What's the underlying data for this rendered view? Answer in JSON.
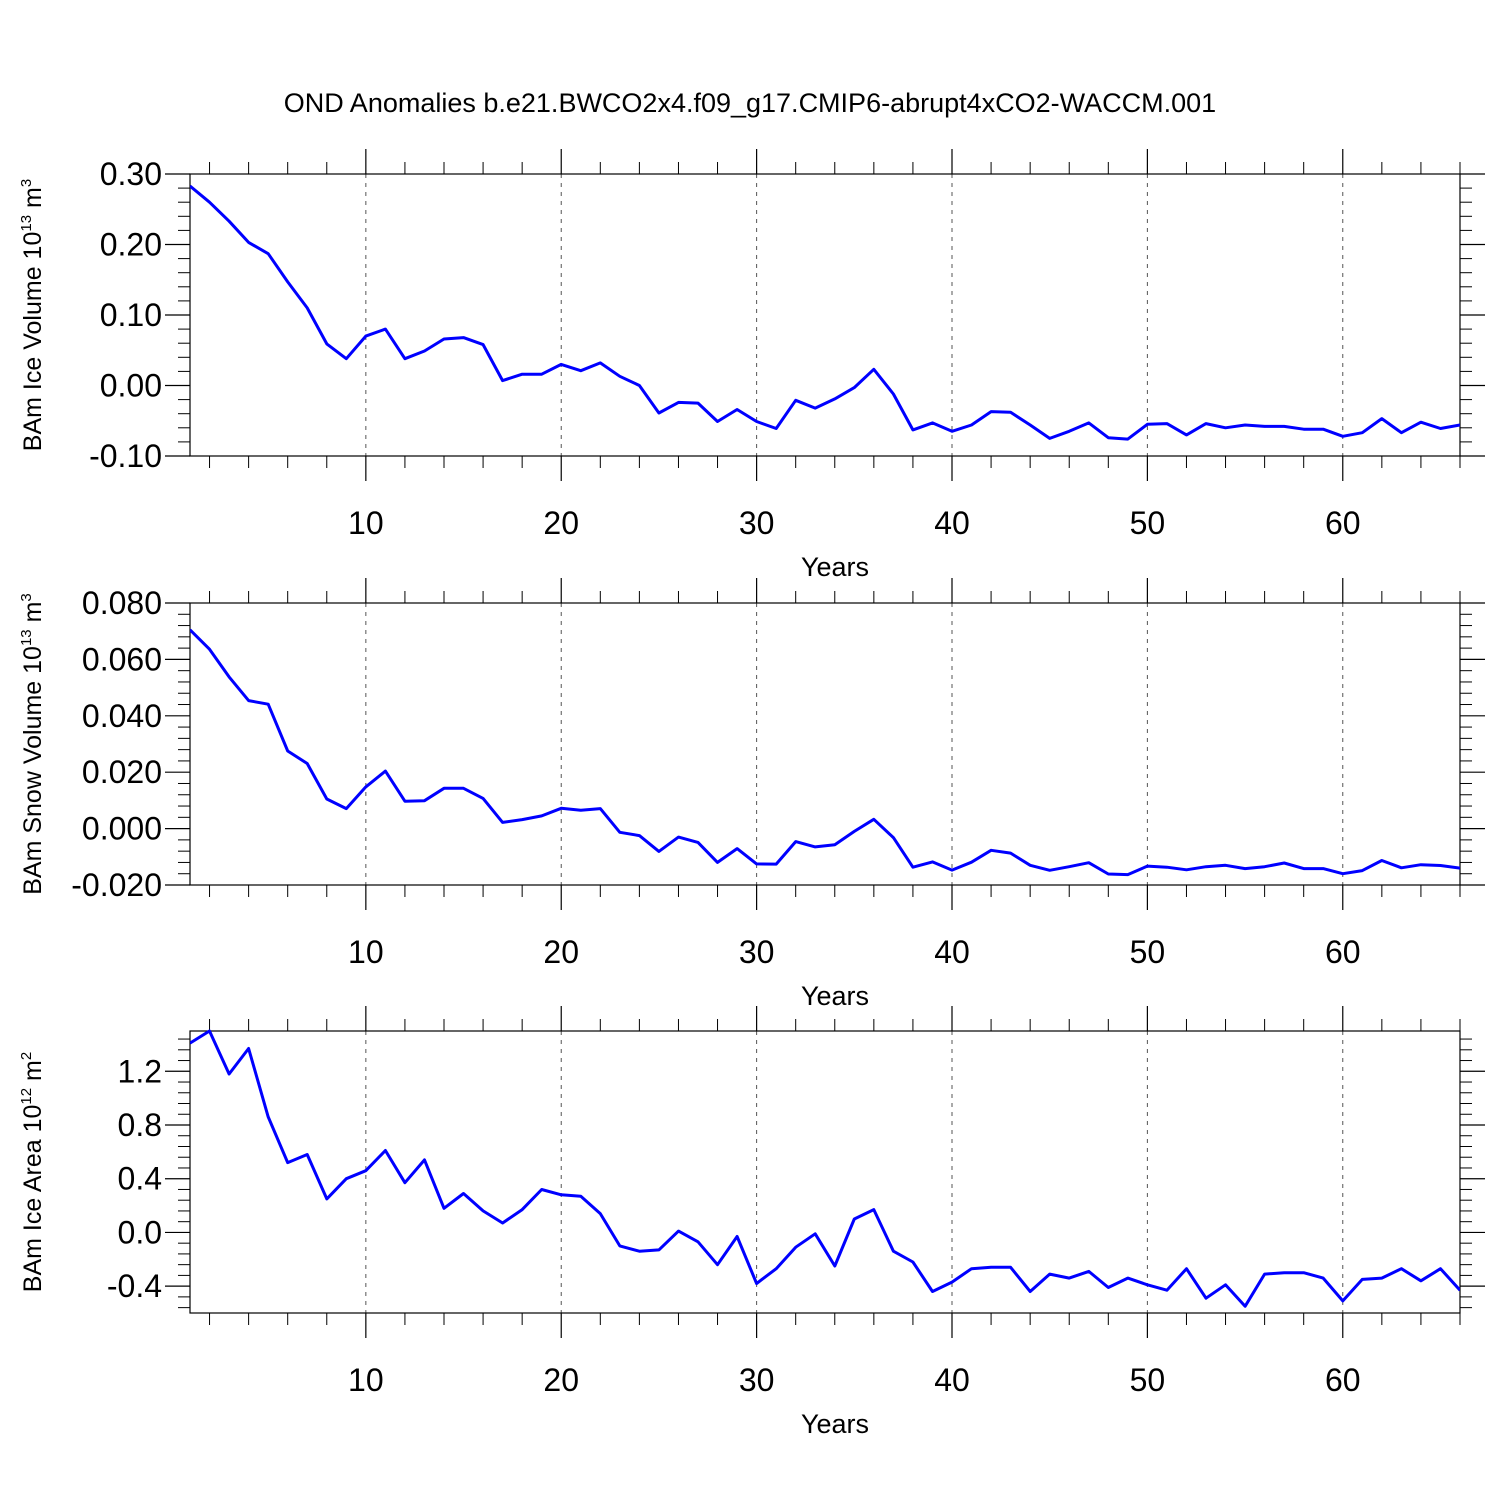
{
  "title": "OND Anomalies b.e21.BWCO2x4.f09_g17.CMIP6-abrupt4xCO2-WACCM.001",
  "colors": {
    "line": "#0000ff",
    "axis": "#000000",
    "grid": "#555555"
  },
  "chart_data": [
    {
      "type": "line",
      "xlabel": "Years",
      "ylabel": {
        "text": "BAm Ice Volume 10",
        "exponent": "13",
        "unit": " m",
        "unit_exponent": "3"
      },
      "xlim": [
        1,
        66
      ],
      "ylim": [
        -0.1,
        0.3
      ],
      "x_ticks": [
        10,
        20,
        30,
        40,
        50,
        60
      ],
      "y_ticks": [
        -0.1,
        0.0,
        0.1,
        0.2,
        0.3
      ],
      "y_tick_labels": [
        "-0.10",
        "0.00",
        "0.10",
        "0.20",
        "0.30"
      ],
      "grid": "x-dashed",
      "series": [
        {
          "x_start": 1,
          "values": [
            0.283,
            0.26,
            0.233,
            0.203,
            0.187,
            0.147,
            0.11,
            0.059,
            0.038,
            0.07,
            0.08,
            0.038,
            0.049,
            0.066,
            0.068,
            0.058,
            0.007,
            0.016,
            0.016,
            0.03,
            0.021,
            0.032,
            0.013,
            0.0,
            -0.039,
            -0.024,
            -0.025,
            -0.051,
            -0.034,
            -0.051,
            -0.061,
            -0.021,
            -0.032,
            -0.019,
            -0.003,
            0.023,
            -0.012,
            -0.063,
            -0.053,
            -0.065,
            -0.056,
            -0.037,
            -0.038,
            -0.056,
            -0.075,
            -0.065,
            -0.053,
            -0.074,
            -0.076,
            -0.055,
            -0.054,
            -0.07,
            -0.054,
            -0.06,
            -0.056,
            -0.058,
            -0.058,
            -0.062,
            -0.062,
            -0.072,
            -0.067,
            -0.047,
            -0.067,
            -0.052,
            -0.061,
            -0.056
          ]
        }
      ]
    },
    {
      "type": "line",
      "xlabel": "Years",
      "ylabel": {
        "text": "BAm Snow Volume 10",
        "exponent": "13",
        "unit": " m",
        "unit_exponent": "3"
      },
      "xlim": [
        1,
        66
      ],
      "ylim": [
        -0.02,
        0.08
      ],
      "x_ticks": [
        10,
        20,
        30,
        40,
        50,
        60
      ],
      "y_ticks": [
        -0.02,
        0.0,
        0.02,
        0.04,
        0.06,
        0.08
      ],
      "y_tick_labels": [
        "-0.020",
        "0.000",
        "0.020",
        "0.040",
        "0.060",
        "0.080"
      ],
      "grid": "x-dashed",
      "series": [
        {
          "x_start": 1,
          "values": [
            0.0705,
            0.0636,
            0.0538,
            0.0454,
            0.0441,
            0.0275,
            0.0231,
            0.0105,
            0.0071,
            0.0148,
            0.0204,
            0.0097,
            0.0099,
            0.0143,
            0.0143,
            0.0107,
            0.0022,
            0.0032,
            0.0045,
            0.0072,
            0.0065,
            0.0071,
            -0.0013,
            -0.0025,
            -0.0081,
            -0.003,
            -0.0049,
            -0.012,
            -0.0071,
            -0.0125,
            -0.0126,
            -0.0046,
            -0.0065,
            -0.0057,
            -0.001,
            0.0033,
            -0.0032,
            -0.0137,
            -0.0118,
            -0.0147,
            -0.0119,
            -0.0077,
            -0.0087,
            -0.013,
            -0.0148,
            -0.0135,
            -0.0121,
            -0.0161,
            -0.0163,
            -0.0133,
            -0.0137,
            -0.0146,
            -0.0135,
            -0.013,
            -0.0142,
            -0.0135,
            -0.0122,
            -0.0142,
            -0.0142,
            -0.016,
            -0.0149,
            -0.0113,
            -0.0139,
            -0.0128,
            -0.0131,
            -0.014
          ]
        }
      ]
    },
    {
      "type": "line",
      "xlabel": "Years",
      "ylabel": {
        "text": "BAm Ice Area 10",
        "exponent": "12",
        "unit": " m",
        "unit_exponent": "2"
      },
      "xlim": [
        1,
        66
      ],
      "ylim": [
        -0.6,
        1.5
      ],
      "x_ticks": [
        10,
        20,
        30,
        40,
        50,
        60
      ],
      "y_ticks": [
        -0.4,
        0.0,
        0.4,
        0.8,
        1.2
      ],
      "y_tick_labels": [
        "-0.4",
        "0.0",
        "0.4",
        "0.8",
        "1.2"
      ],
      "grid": "x-dashed",
      "series": [
        {
          "x_start": 1,
          "values": [
            1.41,
            1.5,
            1.18,
            1.37,
            0.86,
            0.52,
            0.58,
            0.25,
            0.4,
            0.46,
            0.61,
            0.37,
            0.54,
            0.18,
            0.29,
            0.16,
            0.07,
            0.17,
            0.32,
            0.28,
            0.27,
            0.14,
            -0.1,
            -0.14,
            -0.13,
            0.01,
            -0.07,
            -0.24,
            -0.03,
            -0.38,
            -0.27,
            -0.11,
            -0.01,
            -0.25,
            0.1,
            0.17,
            -0.14,
            -0.22,
            -0.44,
            -0.37,
            -0.27,
            -0.26,
            -0.26,
            -0.44,
            -0.31,
            -0.34,
            -0.29,
            -0.41,
            -0.34,
            -0.39,
            -0.43,
            -0.27,
            -0.49,
            -0.39,
            -0.55,
            -0.31,
            -0.3,
            -0.3,
            -0.34,
            -0.51,
            -0.35,
            -0.34,
            -0.27,
            -0.36,
            -0.27,
            -0.43
          ]
        }
      ]
    }
  ]
}
